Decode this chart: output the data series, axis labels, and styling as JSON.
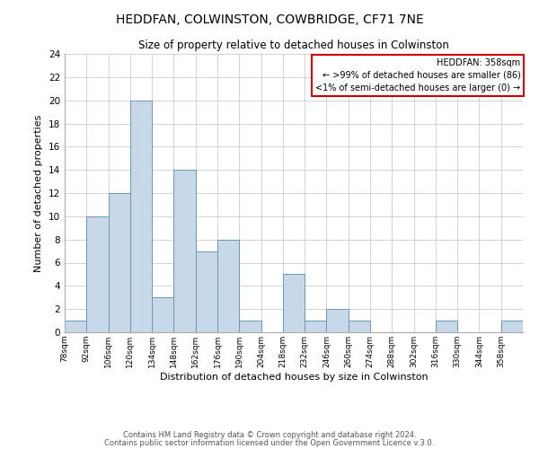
{
  "title": "HEDDFAN, COLWINSTON, COWBRIDGE, CF71 7NE",
  "subtitle": "Size of property relative to detached houses in Colwinston",
  "xlabel": "Distribution of detached houses by size in Colwinston",
  "ylabel": "Number of detached properties",
  "bin_labels": [
    "78sqm",
    "92sqm",
    "106sqm",
    "120sqm",
    "134sqm",
    "148sqm",
    "162sqm",
    "176sqm",
    "190sqm",
    "204sqm",
    "218sqm",
    "232sqm",
    "246sqm",
    "260sqm",
    "274sqm",
    "288sqm",
    "302sqm",
    "316sqm",
    "330sqm",
    "344sqm",
    "358sqm"
  ],
  "bin_edges": [
    78,
    92,
    106,
    120,
    134,
    148,
    162,
    176,
    190,
    204,
    218,
    232,
    246,
    260,
    274,
    288,
    302,
    316,
    330,
    344,
    358
  ],
  "counts": [
    1,
    10,
    12,
    20,
    3,
    14,
    7,
    8,
    1,
    0,
    5,
    1,
    2,
    1,
    0,
    0,
    0,
    1,
    0,
    0,
    1
  ],
  "bar_color": "#c8d8e8",
  "bar_edgecolor": "#6699bb",
  "annotation_title": "HEDDFAN: 358sqm",
  "annotation_line1": "← >99% of detached houses are smaller (86)",
  "annotation_line2": "<1% of semi-detached houses are larger (0) →",
  "annotation_box_edgecolor": "#cc0000",
  "ylim": [
    0,
    24
  ],
  "yticks": [
    0,
    2,
    4,
    6,
    8,
    10,
    12,
    14,
    16,
    18,
    20,
    22,
    24
  ],
  "footer_line1": "Contains HM Land Registry data © Crown copyright and database right 2024.",
  "footer_line2": "Contains public sector information licensed under the Open Government Licence v.3.0.",
  "bg_color": "#ffffff",
  "grid_color": "#cccccc"
}
